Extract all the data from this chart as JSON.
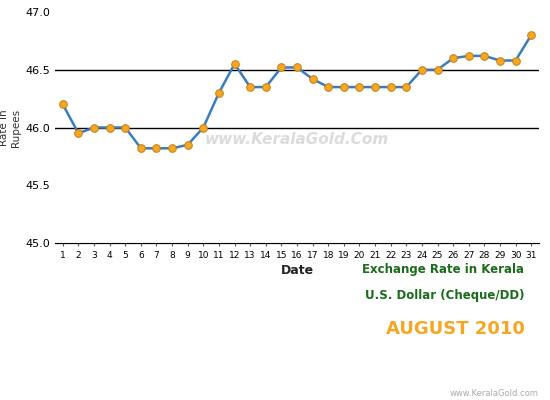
{
  "dates": [
    1,
    2,
    3,
    4,
    5,
    6,
    7,
    8,
    9,
    10,
    11,
    12,
    13,
    14,
    15,
    16,
    17,
    18,
    19,
    20,
    21,
    22,
    23,
    24,
    25,
    26,
    27,
    28,
    29,
    30,
    31
  ],
  "values": [
    46.2,
    45.95,
    46.0,
    46.0,
    46.0,
    45.82,
    45.82,
    45.82,
    45.85,
    46.0,
    46.3,
    46.55,
    46.35,
    46.35,
    46.52,
    46.52,
    46.42,
    46.35,
    46.35,
    46.35,
    46.35,
    46.35,
    46.35,
    46.5,
    46.5,
    46.6,
    46.62,
    46.62,
    46.58,
    46.58,
    46.8
  ],
  "line_color": "#3a7dbf",
  "marker_color": "#f5a623",
  "marker_edge_color": "#c47d10",
  "ylim": [
    45.0,
    47.0
  ],
  "yticks": [
    45.0,
    45.5,
    46.0,
    46.5,
    47.0
  ],
  "xlabel": "Date",
  "ylabel": "Rate in\nRupees",
  "annotation_line1": "Exchange Rate in Kerala",
  "annotation_line2": "U.S. Dollar (Cheque/DD)",
  "annotation_line3": "AUGUST 2010",
  "annotation_color1": "#1a6b1a",
  "annotation_color2": "#f5a623",
  "watermark": "www.KeralaGold.com",
  "watermark_chart": "www.KeralaGold.Com",
  "bg_color": "#ffffff",
  "hline_color": "#000000",
  "hlines": [
    46.0,
    46.5
  ]
}
